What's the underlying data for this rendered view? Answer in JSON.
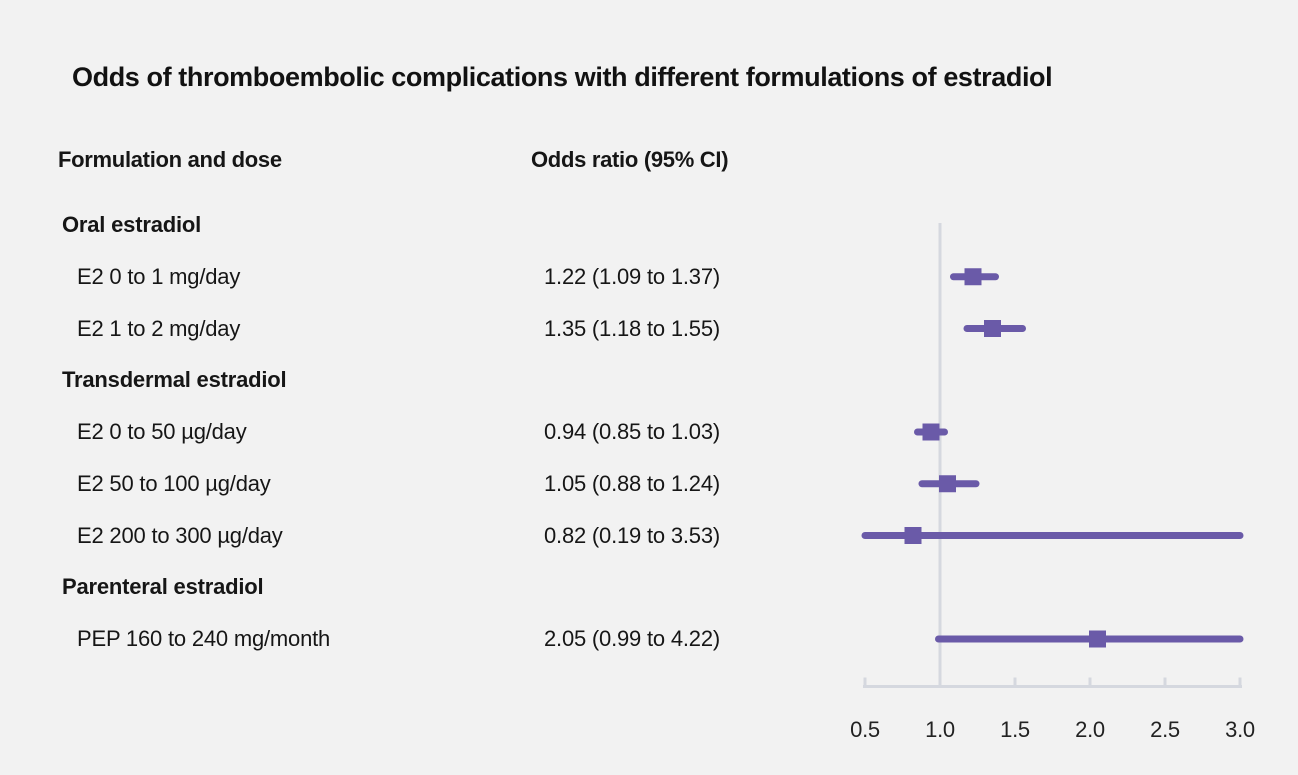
{
  "title": "Odds of thromboembolic complications with different formulations of estradiol",
  "columns": {
    "formulation": "Formulation and dose",
    "odds_ratio": "Odds ratio (95% CI)"
  },
  "colors": {
    "background": "#f2f2f2",
    "text": "#161616",
    "marker_purple": "#6a5aa8",
    "axis_gray": "#d5d8df"
  },
  "chart_data": {
    "type": "forest",
    "title": "Odds of thromboembolic complications with different formulations of estradiol",
    "xlim": [
      0.5,
      3.0
    ],
    "reference_line": 1.0,
    "x_tick_values": [
      0.5,
      1.0,
      1.5,
      2.0,
      2.5,
      3.0
    ],
    "x_tick_labels": [
      "0.5",
      "1.0",
      "1.5",
      "2.0",
      "2.5",
      "3.0"
    ],
    "legend": "none",
    "grid": "off",
    "rows": [
      {
        "label": "Oral estradiol",
        "group": true
      },
      {
        "label": "E2 0 to 1 mg/day",
        "value_text": "1.22 (1.09 to 1.37)",
        "or": 1.22,
        "ci_low": 1.09,
        "ci_high": 1.37
      },
      {
        "label": "E2 1 to 2 mg/day",
        "value_text": "1.35 (1.18 to 1.55)",
        "or": 1.35,
        "ci_low": 1.18,
        "ci_high": 1.55
      },
      {
        "label": "Transdermal estradiol",
        "group": true
      },
      {
        "label": "E2 0 to 50 µg/day",
        "value_text": "0.94 (0.85 to 1.03)",
        "or": 0.94,
        "ci_low": 0.85,
        "ci_high": 1.03
      },
      {
        "label": "E2 50 to 100 µg/day",
        "value_text": "1.05 (0.88 to 1.24)",
        "or": 1.05,
        "ci_low": 0.88,
        "ci_high": 1.24
      },
      {
        "label": "E2 200 to 300 µg/day",
        "value_text": "0.82 (0.19 to 3.53)",
        "or": 0.82,
        "ci_low": 0.19,
        "ci_high": 3.53
      },
      {
        "label": "Parenteral estradiol",
        "group": true
      },
      {
        "label": "PEP 160 to 240 mg/month",
        "value_text": "2.05 (0.99 to 4.22)",
        "or": 2.05,
        "ci_low": 0.99,
        "ci_high": 4.22
      }
    ]
  }
}
